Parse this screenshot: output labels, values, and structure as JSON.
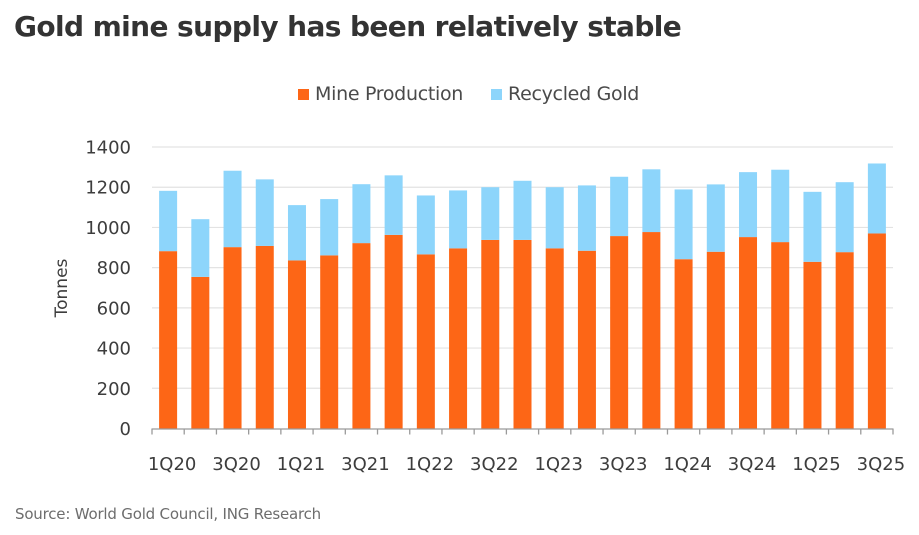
{
  "title": "Gold mine supply has been relatively stable",
  "source": "Source: World Gold Council, ING Research",
  "colors": {
    "mine_production": "#FD6616",
    "recycled_gold": "#8DD5FB",
    "grid": "#e3e3e3",
    "axis": "#9a9a9a"
  },
  "chart_data": {
    "type": "bar",
    "stacked": true,
    "title": "Gold mine supply has been relatively stable",
    "xlabel": "",
    "ylabel": "Tonnes",
    "ylim": [
      0,
      1400
    ],
    "yticks": [
      0,
      200,
      400,
      600,
      800,
      1000,
      1200,
      1400
    ],
    "grid": true,
    "legend_position": "top-center",
    "categories": [
      "1Q20",
      "2Q20",
      "3Q20",
      "4Q20",
      "1Q21",
      "2Q21",
      "3Q21",
      "4Q21",
      "1Q22",
      "2Q22",
      "3Q22",
      "4Q22",
      "1Q23",
      "2Q23",
      "3Q23",
      "4Q23",
      "1Q24",
      "2Q24",
      "3Q24",
      "4Q24",
      "1Q25",
      "2Q25",
      "3Q25"
    ],
    "xtick_labels": [
      "1Q20",
      "3Q20",
      "1Q21",
      "3Q21",
      "1Q22",
      "3Q22",
      "1Q23",
      "3Q23",
      "1Q24",
      "3Q24",
      "1Q25",
      "3Q25"
    ],
    "xtick_label_indices": [
      0,
      2,
      4,
      6,
      8,
      10,
      12,
      14,
      16,
      18,
      20,
      22
    ],
    "series": [
      {
        "name": "Mine Production",
        "values": [
          882,
          754,
          902,
          908,
          836,
          861,
          922,
          963,
          866,
          896,
          938,
          938,
          896,
          884,
          957,
          977,
          842,
          879,
          952,
          927,
          829,
          877,
          970
        ]
      },
      {
        "name": "Recycled Gold",
        "values": [
          300,
          287,
          380,
          331,
          275,
          280,
          293,
          296,
          293,
          288,
          262,
          294,
          304,
          325,
          295,
          312,
          347,
          335,
          323,
          360,
          348,
          348,
          348
        ]
      }
    ]
  }
}
